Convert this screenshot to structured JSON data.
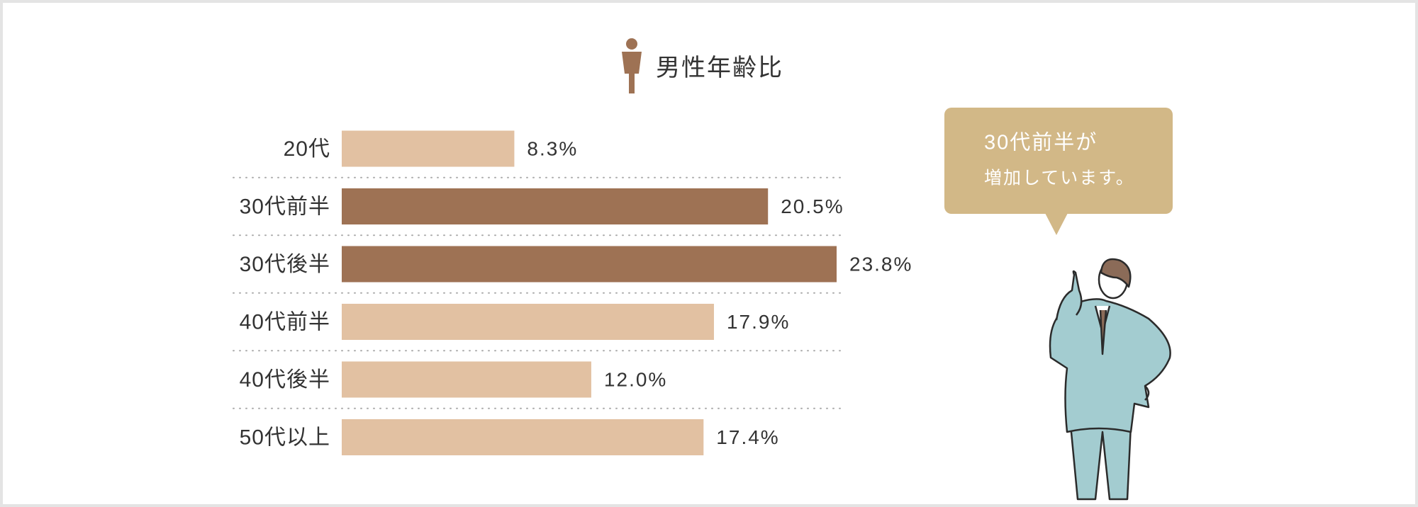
{
  "chart_data": {
    "type": "bar",
    "orientation": "horizontal",
    "title": "男性年齢比",
    "categories": [
      "20代",
      "30代前半",
      "30代後半",
      "40代前半",
      "40代後半",
      "50代以上"
    ],
    "values": [
      8.3,
      20.5,
      23.8,
      17.9,
      12.0,
      17.4
    ],
    "value_labels": [
      "8.3%",
      "20.5%",
      "23.8%",
      "17.9%",
      "12.0%",
      "17.4%"
    ],
    "colors": [
      "#e2c1a2",
      "#9e7254",
      "#9e7254",
      "#e2c1a2",
      "#e2c1a2",
      "#e2c1a2"
    ],
    "annotation": [
      "30代前半が",
      "増加しています。"
    ]
  }
}
